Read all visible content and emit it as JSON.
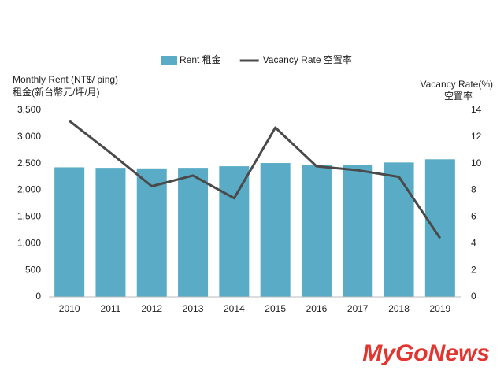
{
  "chart_data": {
    "type": "combo",
    "legend": "top",
    "y_label": [
      "Monthly Rent (NT$/ ping)",
      "租金(新台幣元/坪/月)"
    ],
    "y2_label": [
      "Vacancy Rate(%)",
      "空置率"
    ],
    "categories": [
      "2010",
      "2011",
      "2012",
      "2013",
      "2014",
      "2015",
      "2016",
      "2017",
      "2018",
      "2019"
    ],
    "series": [
      {
        "name": "Rent 租金",
        "type": "bar",
        "color": "#59abc6",
        "values": [
          2430,
          2420,
          2410,
          2420,
          2450,
          2510,
          2470,
          2480,
          2520,
          2580
        ]
      },
      {
        "name": "Vacancy Rate 空置率",
        "type": "line",
        "axis": "y2",
        "color": "#4a4a4a",
        "values": [
          13.2,
          10.8,
          8.3,
          9.1,
          7.4,
          12.7,
          9.8,
          9.5,
          9.0,
          4.4
        ]
      }
    ],
    "ylim": [
      0,
      3500
    ],
    "yticks": [
      0,
      500,
      {
        "value": 1000,
        "label": "1,000"
      },
      {
        "value": 1500,
        "label": "1,500"
      },
      {
        "value": 2000,
        "label": "2,000"
      },
      {
        "value": 2500,
        "label": "2,500"
      },
      {
        "value": 3000,
        "label": "3,000"
      },
      {
        "value": 3500,
        "label": "3,500"
      }
    ],
    "y2lim": [
      0,
      14
    ],
    "y2ticks": [
      0,
      2,
      4,
      6,
      8,
      10,
      12,
      14
    ],
    "watermark": "MyGoNews"
  }
}
